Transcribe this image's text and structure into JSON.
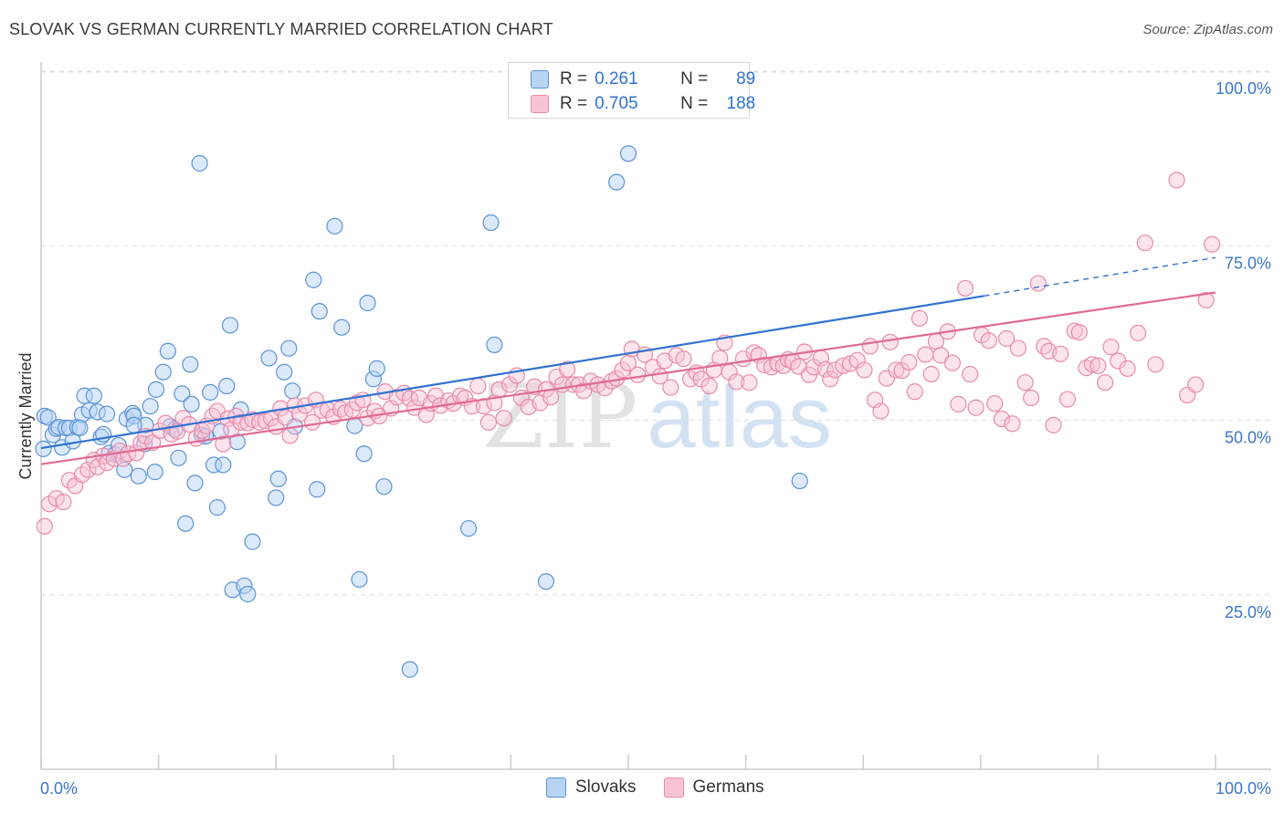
{
  "header": {
    "title": "SLOVAK VS GERMAN CURRENTLY MARRIED CORRELATION CHART",
    "source": "Source: ZipAtlas.com"
  },
  "watermark": {
    "part1": "ZIP",
    "part2": "atlas"
  },
  "legend": {
    "rows": [
      {
        "r_label": "R =",
        "r_value": "0.261",
        "n_label": "N =",
        "n_value": "89"
      },
      {
        "r_label": "R =",
        "r_value": "0.705",
        "n_label": "N =",
        "n_value": "188"
      }
    ]
  },
  "bottom_legend": {
    "items": [
      {
        "label": "Slovaks"
      },
      {
        "label": "Germans"
      }
    ]
  },
  "colors": {
    "slovak_fill": "#b8d4f5",
    "slovak_stroke": "#5b93d8",
    "slovak_line": "#2f72d0",
    "german_fill": "#f8c4d5",
    "german_stroke": "#e88aa9",
    "german_line": "#e06a94",
    "axis_value": "#3a75c9",
    "grid": "#dddddd",
    "axis": "#cccccc"
  },
  "chart_data": {
    "type": "scatter",
    "title": "SLOVAK VS GERMAN CURRENTLY MARRIED CORRELATION CHART",
    "xlabel": "",
    "ylabel": "Currently Married",
    "xlim": [
      0,
      100
    ],
    "ylim": [
      0,
      102
    ],
    "grid": true,
    "legend_position": "top-center",
    "x_tick_labels": [
      "0.0%",
      "100.0%"
    ],
    "y_tick_labels": [
      "25.0%",
      "50.0%",
      "75.0%",
      "100.0%"
    ],
    "y_ticks": [
      25,
      50,
      75,
      100
    ],
    "x_minor_ticks": [
      0,
      10,
      20,
      30,
      40,
      50,
      60,
      70,
      80,
      90,
      100
    ],
    "series": [
      {
        "name": "Slovaks",
        "R": 0.261,
        "N": 89,
        "trend": {
          "x0": 0,
          "y0": 46.0,
          "x1": 80.3,
          "y1": 67.8,
          "dash_to_x": 100,
          "dash_to_y": 73.3
        },
        "points": [
          [
            0.2,
            45.9
          ],
          [
            0.3,
            50.6
          ],
          [
            0.6,
            50.4
          ],
          [
            1.0,
            47.9
          ],
          [
            1.3,
            48.8
          ],
          [
            1.5,
            49.0
          ],
          [
            1.8,
            46.1
          ],
          [
            2.1,
            48.9
          ],
          [
            2.4,
            48.9
          ],
          [
            2.7,
            47.0
          ],
          [
            3.1,
            49.0
          ],
          [
            3.5,
            50.8
          ],
          [
            3.7,
            53.5
          ],
          [
            4.1,
            51.4
          ],
          [
            4.5,
            53.5
          ],
          [
            4.8,
            51.2
          ],
          [
            5.1,
            47.6
          ],
          [
            5.3,
            48.0
          ],
          [
            5.6,
            50.9
          ],
          [
            5.8,
            45.3
          ],
          [
            6.3,
            45.1
          ],
          [
            6.6,
            46.4
          ],
          [
            7.1,
            42.9
          ],
          [
            7.3,
            50.2
          ],
          [
            7.8,
            51.0
          ],
          [
            7.9,
            50.6
          ],
          [
            8.3,
            42.0
          ],
          [
            8.8,
            46.6
          ],
          [
            8.9,
            49.3
          ],
          [
            9.3,
            52.0
          ],
          [
            9.7,
            42.6
          ],
          [
            9.8,
            54.4
          ],
          [
            10.4,
            56.9
          ],
          [
            10.8,
            59.9
          ],
          [
            11.0,
            49.1
          ],
          [
            11.4,
            48.7
          ],
          [
            11.7,
            44.6
          ],
          [
            12.0,
            53.8
          ],
          [
            12.3,
            35.2
          ],
          [
            12.7,
            58.0
          ],
          [
            12.8,
            52.3
          ],
          [
            13.1,
            41.0
          ],
          [
            13.5,
            86.8
          ],
          [
            13.7,
            47.9
          ],
          [
            14.0,
            47.7
          ],
          [
            14.4,
            54.0
          ],
          [
            14.7,
            43.6
          ],
          [
            15.0,
            37.5
          ],
          [
            15.3,
            48.4
          ],
          [
            15.5,
            43.6
          ],
          [
            15.8,
            54.9
          ],
          [
            16.1,
            63.6
          ],
          [
            16.3,
            25.7
          ],
          [
            16.7,
            46.9
          ],
          [
            17.0,
            51.5
          ],
          [
            17.3,
            26.3
          ],
          [
            17.6,
            25.1
          ],
          [
            18.0,
            32.6
          ],
          [
            19.4,
            58.9
          ],
          [
            20.0,
            38.9
          ],
          [
            20.2,
            41.6
          ],
          [
            20.7,
            56.9
          ],
          [
            21.1,
            60.3
          ],
          [
            21.4,
            54.2
          ],
          [
            21.6,
            49.1
          ],
          [
            23.2,
            70.1
          ],
          [
            23.5,
            40.1
          ],
          [
            23.7,
            65.6
          ],
          [
            25.0,
            77.8
          ],
          [
            25.6,
            63.3
          ],
          [
            26.7,
            49.2
          ],
          [
            27.1,
            27.2
          ],
          [
            27.5,
            45.2
          ],
          [
            27.8,
            66.8
          ],
          [
            28.3,
            55.9
          ],
          [
            28.6,
            57.4
          ],
          [
            29.2,
            40.5
          ],
          [
            31.4,
            14.3
          ],
          [
            36.4,
            34.5
          ],
          [
            38.3,
            78.3
          ],
          [
            38.6,
            60.8
          ],
          [
            43.0,
            26.9
          ],
          [
            49.0,
            84.1
          ],
          [
            50.0,
            88.2
          ],
          [
            51.9,
            100.0
          ],
          [
            52.4,
            99.7
          ],
          [
            64.6,
            41.3
          ],
          [
            7.9,
            49.3
          ],
          [
            3.3,
            48.9
          ]
        ]
      },
      {
        "name": "Germans",
        "R": 0.705,
        "N": 188,
        "trend": {
          "x0": 0,
          "y0": 43.7,
          "x1": 100,
          "y1": 68.3
        },
        "points": [
          [
            0.3,
            34.8
          ],
          [
            0.7,
            38.0
          ],
          [
            1.3,
            38.8
          ],
          [
            1.9,
            38.3
          ],
          [
            2.4,
            41.4
          ],
          [
            2.9,
            40.6
          ],
          [
            3.5,
            42.2
          ],
          [
            4.0,
            42.9
          ],
          [
            4.5,
            44.3
          ],
          [
            4.8,
            43.3
          ],
          [
            5.3,
            44.9
          ],
          [
            5.6,
            43.9
          ],
          [
            6.2,
            44.5
          ],
          [
            6.7,
            45.6
          ],
          [
            7.0,
            44.5
          ],
          [
            7.4,
            45.2
          ],
          [
            8.1,
            45.3
          ],
          [
            8.5,
            46.7
          ],
          [
            8.9,
            47.7
          ],
          [
            9.5,
            46.8
          ],
          [
            10.1,
            48.5
          ],
          [
            10.6,
            49.6
          ],
          [
            11.1,
            48.0
          ],
          [
            11.6,
            48.4
          ],
          [
            12.1,
            50.3
          ],
          [
            12.6,
            49.4
          ],
          [
            13.2,
            47.4
          ],
          [
            13.7,
            48.5
          ],
          [
            14.1,
            49.2
          ],
          [
            14.6,
            50.6
          ],
          [
            15.0,
            51.3
          ],
          [
            15.5,
            46.6
          ],
          [
            15.9,
            50.2
          ],
          [
            16.2,
            48.7
          ],
          [
            16.6,
            50.6
          ],
          [
            17.0,
            49.7
          ],
          [
            17.6,
            49.6
          ],
          [
            18.0,
            50.1
          ],
          [
            18.6,
            49.7
          ],
          [
            19.1,
            49.9
          ],
          [
            19.6,
            50.3
          ],
          [
            20.0,
            49.1
          ],
          [
            20.4,
            51.7
          ],
          [
            20.8,
            50.4
          ],
          [
            21.2,
            47.8
          ],
          [
            21.6,
            52.1
          ],
          [
            22.0,
            50.9
          ],
          [
            22.5,
            52.1
          ],
          [
            23.1,
            49.7
          ],
          [
            23.4,
            52.9
          ],
          [
            23.9,
            51.4
          ],
          [
            24.4,
            51.5
          ],
          [
            24.9,
            50.5
          ],
          [
            25.5,
            51.6
          ],
          [
            25.9,
            51.1
          ],
          [
            26.5,
            51.5
          ],
          [
            26.9,
            52.5
          ],
          [
            27.4,
            52.9
          ],
          [
            27.8,
            50.3
          ],
          [
            28.4,
            51.3
          ],
          [
            28.8,
            50.6
          ],
          [
            29.3,
            54.1
          ],
          [
            29.8,
            51.7
          ],
          [
            30.3,
            53.3
          ],
          [
            30.9,
            53.9
          ],
          [
            31.4,
            53.1
          ],
          [
            31.8,
            51.8
          ],
          [
            32.2,
            53.2
          ],
          [
            32.8,
            50.8
          ],
          [
            33.2,
            52.4
          ],
          [
            33.6,
            53.5
          ],
          [
            34.0,
            52.1
          ],
          [
            34.7,
            52.8
          ],
          [
            35.1,
            52.4
          ],
          [
            35.7,
            53.5
          ],
          [
            36.1,
            53.2
          ],
          [
            36.7,
            52.0
          ],
          [
            37.2,
            54.9
          ],
          [
            37.7,
            52.0
          ],
          [
            38.1,
            49.7
          ],
          [
            38.6,
            52.5
          ],
          [
            39.0,
            54.4
          ],
          [
            39.4,
            50.3
          ],
          [
            39.9,
            55.1
          ],
          [
            40.5,
            56.4
          ],
          [
            40.9,
            53.2
          ],
          [
            41.5,
            51.9
          ],
          [
            42.0,
            54.8
          ],
          [
            42.5,
            52.5
          ],
          [
            43.0,
            54.4
          ],
          [
            43.4,
            53.3
          ],
          [
            43.9,
            56.2
          ],
          [
            44.4,
            55.1
          ],
          [
            44.8,
            57.3
          ],
          [
            45.3,
            55.1
          ],
          [
            45.8,
            55.1
          ],
          [
            46.2,
            54.2
          ],
          [
            46.8,
            55.6
          ],
          [
            47.4,
            55.1
          ],
          [
            48.0,
            54.6
          ],
          [
            48.6,
            55.6
          ],
          [
            49.0,
            56.0
          ],
          [
            49.5,
            57.2
          ],
          [
            50.0,
            58.2
          ],
          [
            50.3,
            60.2
          ],
          [
            50.8,
            56.5
          ],
          [
            51.4,
            59.4
          ],
          [
            52.1,
            57.6
          ],
          [
            52.7,
            56.3
          ],
          [
            53.1,
            58.5
          ],
          [
            53.6,
            54.7
          ],
          [
            54.1,
            59.3
          ],
          [
            54.7,
            58.8
          ],
          [
            55.3,
            55.9
          ],
          [
            55.8,
            56.8
          ],
          [
            56.2,
            55.9
          ],
          [
            56.9,
            54.9
          ],
          [
            57.3,
            57.2
          ],
          [
            57.8,
            58.9
          ],
          [
            58.2,
            61.1
          ],
          [
            58.6,
            56.9
          ],
          [
            59.2,
            55.5
          ],
          [
            59.8,
            58.8
          ],
          [
            60.3,
            55.4
          ],
          [
            60.7,
            59.7
          ],
          [
            61.1,
            59.3
          ],
          [
            61.6,
            57.9
          ],
          [
            62.2,
            57.6
          ],
          [
            62.7,
            58.1
          ],
          [
            63.2,
            57.8
          ],
          [
            63.6,
            58.7
          ],
          [
            64.0,
            58.4
          ],
          [
            64.5,
            57.7
          ],
          [
            65.0,
            59.8
          ],
          [
            65.4,
            56.5
          ],
          [
            65.8,
            57.6
          ],
          [
            66.4,
            58.9
          ],
          [
            66.8,
            57.3
          ],
          [
            67.2,
            55.9
          ],
          [
            67.6,
            57.2
          ],
          [
            68.3,
            57.8
          ],
          [
            68.9,
            58.1
          ],
          [
            69.5,
            58.6
          ],
          [
            70.1,
            57.2
          ],
          [
            70.6,
            60.6
          ],
          [
            71.0,
            52.9
          ],
          [
            71.5,
            51.3
          ],
          [
            72.0,
            56.0
          ],
          [
            72.3,
            61.2
          ],
          [
            72.8,
            57.2
          ],
          [
            73.3,
            57.1
          ],
          [
            73.9,
            58.3
          ],
          [
            74.4,
            54.1
          ],
          [
            74.8,
            64.6
          ],
          [
            75.3,
            59.4
          ],
          [
            75.8,
            56.6
          ],
          [
            76.2,
            61.3
          ],
          [
            76.6,
            59.3
          ],
          [
            77.2,
            62.7
          ],
          [
            77.6,
            58.2
          ],
          [
            78.1,
            52.3
          ],
          [
            78.7,
            68.9
          ],
          [
            79.1,
            56.6
          ],
          [
            79.6,
            51.8
          ],
          [
            80.1,
            62.2
          ],
          [
            80.7,
            61.4
          ],
          [
            81.2,
            52.4
          ],
          [
            81.8,
            50.2
          ],
          [
            82.2,
            61.7
          ],
          [
            82.7,
            49.5
          ],
          [
            83.2,
            60.3
          ],
          [
            83.8,
            55.4
          ],
          [
            84.3,
            53.2
          ],
          [
            84.9,
            69.6
          ],
          [
            85.4,
            60.6
          ],
          [
            85.8,
            59.9
          ],
          [
            86.2,
            49.3
          ],
          [
            86.8,
            59.5
          ],
          [
            87.4,
            53.0
          ],
          [
            88.0,
            62.8
          ],
          [
            88.4,
            62.6
          ],
          [
            89.0,
            57.5
          ],
          [
            89.5,
            58.0
          ],
          [
            90.0,
            57.8
          ],
          [
            90.6,
            55.4
          ],
          [
            91.1,
            60.5
          ],
          [
            91.7,
            58.5
          ],
          [
            92.5,
            57.4
          ],
          [
            93.4,
            62.5
          ],
          [
            94.0,
            75.4
          ],
          [
            94.9,
            58.0
          ],
          [
            96.7,
            84.4
          ],
          [
            97.6,
            53.6
          ],
          [
            98.3,
            55.1
          ],
          [
            99.2,
            67.2
          ],
          [
            99.7,
            75.2
          ]
        ]
      }
    ]
  }
}
